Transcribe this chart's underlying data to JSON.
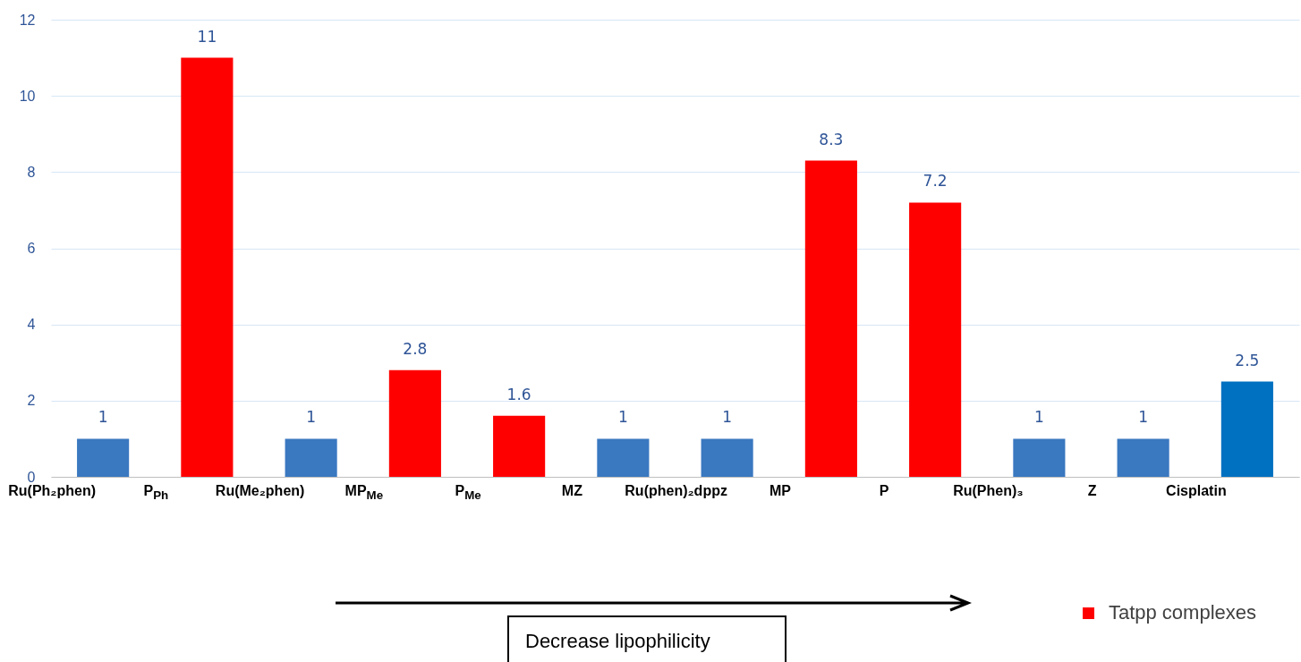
{
  "chart_data": {
    "type": "bar",
    "categories": [
      "Ru(Ph₂phen)",
      "P$_{Ph}$",
      "Ru(Me₂phen)",
      "MP$_{Me}$",
      "P$_{Me}$",
      "MZ",
      "Ru(phen)₂dppz",
      "MP",
      "P",
      "Ru(Phen)₃",
      "Z",
      "Cisplatin"
    ],
    "series": [
      {
        "name": "Tatpp complexes",
        "color": "#ff0000",
        "values": [
          null,
          11,
          null,
          2.8,
          1.6,
          null,
          null,
          8.3,
          7.2,
          null,
          null,
          null
        ]
      },
      {
        "colors": [
          "#3a78c0",
          null,
          "#3a78c0",
          null,
          null,
          "#3a78c0",
          "#3a78c0",
          null,
          null,
          "#3a78c0",
          "#3a78c0",
          "#0070c0"
        ],
        "values": [
          1,
          null,
          1,
          null,
          null,
          1,
          1,
          null,
          null,
          1,
          1,
          2.5
        ]
      }
    ],
    "ylim": [
      0,
      12
    ],
    "yticks": [
      0,
      2,
      4,
      6,
      8,
      10,
      12
    ],
    "grid": "y",
    "data_labels": true,
    "legend": "bottom right",
    "annotations": [
      "Decrease lipophilicity"
    ]
  }
}
